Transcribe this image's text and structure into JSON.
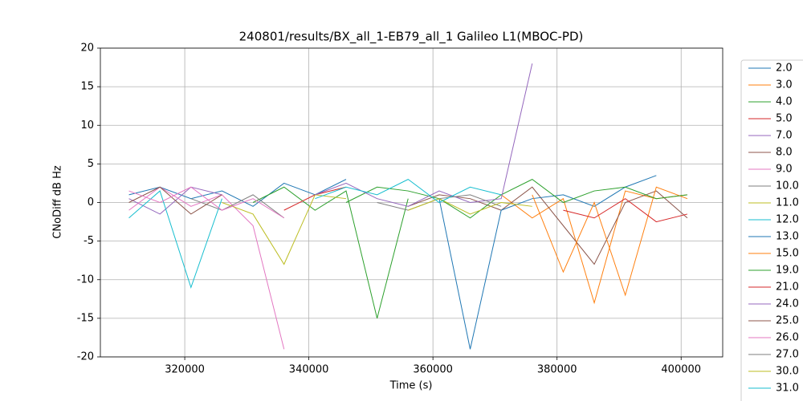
{
  "chart_data": {
    "type": "line",
    "title": "240801/results/BX_all_1-EB79_all_1 Galileo L1(MBOC-PD)",
    "x_label": "Time (s)",
    "y_label": "CNoDiff dB Hz",
    "xlim": [
      306400,
      406700
    ],
    "ylim": [
      -20,
      20
    ],
    "xticks": [
      320000,
      340000,
      360000,
      380000,
      400000
    ],
    "yticks": [
      -20,
      -15,
      -10,
      -5,
      0,
      5,
      10,
      15,
      20
    ],
    "grid": true,
    "legend": "outside right",
    "x": [
      311000,
      316000,
      321000,
      326000,
      331000,
      336000,
      341000,
      346000,
      351000,
      356000,
      361000,
      366000,
      371000,
      376000,
      381000,
      386000,
      391000,
      396000,
      401000
    ],
    "series": [
      {
        "name": "2.0",
        "color": "#1f77b4",
        "values": [
          1,
          2,
          0.5,
          1.5,
          -0.5,
          2.5,
          1,
          3,
          null,
          null,
          null,
          null,
          null,
          null,
          null,
          null,
          null,
          null,
          null
        ]
      },
      {
        "name": "3.0",
        "color": "#ff7f0e",
        "values": [
          null,
          null,
          null,
          null,
          null,
          null,
          null,
          null,
          null,
          null,
          null,
          null,
          1,
          -2,
          0.5,
          -13,
          1.5,
          0.5,
          1
        ]
      },
      {
        "name": "4.0",
        "color": "#2ca02c",
        "values": [
          null,
          null,
          null,
          null,
          0,
          2,
          -1,
          1.5,
          -15,
          0.5,
          null,
          null,
          null,
          null,
          null,
          null,
          null,
          null,
          null
        ]
      },
      {
        "name": "5.0",
        "color": "#d62728",
        "values": [
          null,
          null,
          null,
          null,
          null,
          -1,
          1,
          2,
          null,
          null,
          null,
          null,
          null,
          null,
          null,
          null,
          null,
          null,
          null
        ]
      },
      {
        "name": "7.0",
        "color": "#9467bd",
        "values": [
          0.5,
          -1.5,
          2,
          1,
          null,
          null,
          null,
          null,
          null,
          null,
          null,
          null,
          null,
          null,
          null,
          null,
          null,
          null,
          null
        ]
      },
      {
        "name": "8.0",
        "color": "#8c564b",
        "values": [
          null,
          null,
          null,
          null,
          null,
          null,
          null,
          null,
          null,
          -0.5,
          1,
          0.5,
          -1,
          2,
          -3,
          -8,
          0,
          1.5,
          -2
        ]
      },
      {
        "name": "9.0",
        "color": "#e377c2",
        "values": [
          -1,
          2,
          -0.5,
          1,
          -3,
          -19,
          null,
          null,
          null,
          null,
          null,
          null,
          null,
          null,
          null,
          null,
          null,
          null,
          null
        ]
      },
      {
        "name": "10.0",
        "color": "#7f7f7f",
        "values": [
          null,
          null,
          0.5,
          -1,
          1,
          -2,
          null,
          null,
          null,
          null,
          null,
          null,
          null,
          null,
          null,
          null,
          null,
          null,
          null
        ]
      },
      {
        "name": "11.0",
        "color": "#bcbd22",
        "values": [
          null,
          null,
          null,
          0,
          -1.5,
          -8,
          1,
          0.5,
          null,
          null,
          null,
          null,
          null,
          null,
          null,
          null,
          null,
          null,
          null
        ]
      },
      {
        "name": "12.0",
        "color": "#17becf",
        "values": [
          -2,
          1.5,
          -11,
          0.5,
          null,
          null,
          null,
          null,
          null,
          null,
          null,
          null,
          null,
          null,
          null,
          null,
          null,
          null,
          null
        ]
      },
      {
        "name": "13.0",
        "color": "#1f77b4",
        "values": [
          null,
          null,
          null,
          null,
          null,
          null,
          null,
          null,
          null,
          null,
          0.5,
          -19,
          -1,
          0.5,
          1,
          -0.5,
          2,
          3.5,
          null
        ]
      },
      {
        "name": "15.0",
        "color": "#ff7f0e",
        "values": [
          null,
          null,
          null,
          null,
          null,
          null,
          null,
          null,
          null,
          null,
          null,
          null,
          null,
          1,
          -9,
          0,
          -12,
          2,
          0.5
        ]
      },
      {
        "name": "19.0",
        "color": "#2ca02c",
        "values": [
          null,
          null,
          null,
          null,
          null,
          null,
          null,
          0,
          2,
          1.5,
          0.5,
          -2,
          1,
          3,
          0,
          1.5,
          2,
          0.5,
          1
        ]
      },
      {
        "name": "21.0",
        "color": "#d62728",
        "values": [
          null,
          null,
          null,
          null,
          null,
          null,
          null,
          null,
          null,
          null,
          null,
          null,
          null,
          null,
          -1,
          -2,
          0.5,
          -2.5,
          -1.5
        ]
      },
      {
        "name": "24.0",
        "color": "#9467bd",
        "values": [
          null,
          null,
          null,
          null,
          null,
          null,
          1,
          2.5,
          0.5,
          -0.5,
          1.5,
          0,
          0.5,
          18,
          null,
          null,
          null,
          null,
          null
        ]
      },
      {
        "name": "25.0",
        "color": "#8c564b",
        "values": [
          0,
          2,
          -1.5,
          1,
          null,
          null,
          null,
          null,
          null,
          null,
          null,
          null,
          null,
          null,
          null,
          null,
          null,
          null,
          null
        ]
      },
      {
        "name": "26.0",
        "color": "#e377c2",
        "values": [
          1.5,
          0,
          2,
          -1,
          0.5,
          -2,
          null,
          null,
          null,
          null,
          null,
          null,
          null,
          null,
          null,
          null,
          null,
          null,
          null
        ]
      },
      {
        "name": "27.0",
        "color": "#7f7f7f",
        "values": [
          null,
          null,
          null,
          null,
          null,
          null,
          null,
          null,
          0,
          -1,
          0.5,
          1,
          -0.5,
          null,
          null,
          null,
          null,
          null,
          null
        ]
      },
      {
        "name": "30.0",
        "color": "#bcbd22",
        "values": [
          null,
          null,
          null,
          null,
          null,
          null,
          null,
          null,
          null,
          -1,
          0.5,
          -1.5,
          0,
          -0.5,
          null,
          null,
          null,
          null,
          null
        ]
      },
      {
        "name": "31.0",
        "color": "#17becf",
        "values": [
          null,
          null,
          null,
          null,
          null,
          null,
          0.5,
          2,
          1,
          3,
          0,
          2,
          1,
          null,
          null,
          null,
          null,
          null,
          null
        ]
      }
    ]
  }
}
